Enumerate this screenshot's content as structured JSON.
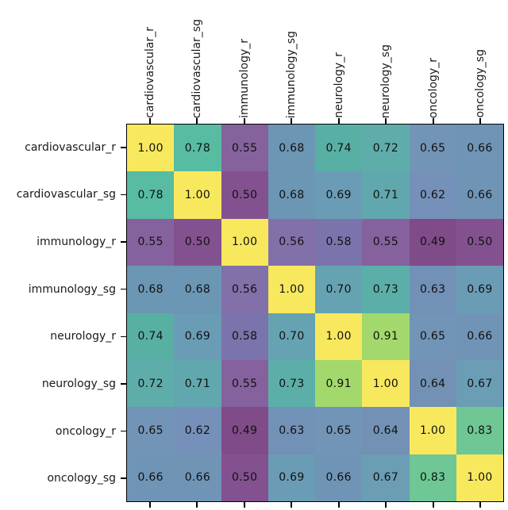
{
  "chart_data": {
    "type": "heatmap",
    "title": "",
    "xlabel": "",
    "ylabel": "",
    "categories": [
      "cardiovascular_r",
      "cardiovascular_sg",
      "immunology_r",
      "immunology_sg",
      "neurology_r",
      "neurology_sg",
      "oncology_r",
      "oncology_sg"
    ],
    "matrix": [
      [
        1.0,
        0.78,
        0.55,
        0.68,
        0.74,
        0.72,
        0.65,
        0.66
      ],
      [
        0.78,
        1.0,
        0.5,
        0.68,
        0.69,
        0.71,
        0.62,
        0.66
      ],
      [
        0.55,
        0.5,
        1.0,
        0.56,
        0.58,
        0.55,
        0.49,
        0.5
      ],
      [
        0.68,
        0.68,
        0.56,
        1.0,
        0.7,
        0.73,
        0.63,
        0.69
      ],
      [
        0.74,
        0.69,
        0.58,
        0.7,
        1.0,
        0.91,
        0.65,
        0.66
      ],
      [
        0.72,
        0.71,
        0.55,
        0.73,
        0.91,
        1.0,
        0.64,
        0.67
      ],
      [
        0.65,
        0.62,
        0.49,
        0.63,
        0.65,
        0.64,
        1.0,
        0.83
      ],
      [
        0.66,
        0.66,
        0.5,
        0.69,
        0.66,
        0.67,
        0.83,
        1.0
      ]
    ],
    "value_decimals": 2,
    "vmin": 0.49,
    "vmax": 1.0,
    "colormap": "viridis-muted",
    "value_colors": {
      "0.49": "#7f4b88",
      "0.50": "#845190",
      "0.55": "#85629e",
      "0.56": "#8270a9",
      "0.58": "#7b73ac",
      "0.62": "#7590b9",
      "0.63": "#7291b6",
      "0.64": "#7291b5",
      "0.65": "#7294b6",
      "0.66": "#7094b6",
      "0.67": "#6b9db4",
      "0.68": "#6b96b4",
      "0.69": "#6a9cb5",
      "0.70": "#66a3b2",
      "0.71": "#61a7ae",
      "0.72": "#5fadab",
      "0.73": "#5cafa9",
      "0.74": "#58b0a4",
      "0.78": "#57bca1",
      "0.83": "#6ec795",
      "0.91": "#a3d96c",
      "1.00": "#f8e85e"
    },
    "cell_text_color": "#111111",
    "axis_text_color": "#1a1a1a",
    "spine_color": "#000000",
    "background_color": "#ffffff",
    "layout_hints": {
      "x_tick_labels_position": "top",
      "x_ticks": "top and bottom",
      "y_ticks": "left",
      "grid": false,
      "legend": false,
      "colorbar": false
    }
  }
}
